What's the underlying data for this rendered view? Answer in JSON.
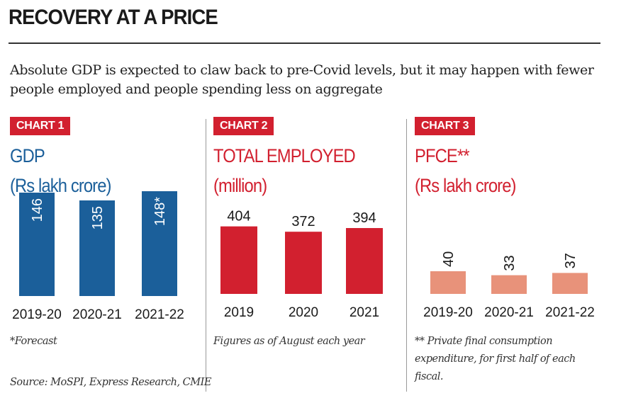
{
  "headline": "RECOVERY AT A PRICE",
  "subtitle": "Absolute GDP is expected to claw back to pre-Covid levels, but it may happen with fewer people employed and people spending less on aggregate",
  "source": "Source: MoSPI, Express Research, CMIE",
  "chart_data": [
    {
      "type": "bar",
      "badge": "CHART 1",
      "title": "GDP",
      "unit": "(Rs lakh crore)",
      "categories": [
        "2019-20",
        "2020-21",
        "2021-22"
      ],
      "values": [
        146,
        135,
        148
      ],
      "value_labels": [
        "146",
        "135",
        "148*"
      ],
      "label_orientation": "vertical-inside",
      "color": "#1b5f9a",
      "note": "*Forecast"
    },
    {
      "type": "bar",
      "badge": "CHART 2",
      "title": "TOTAL EMPLOYED",
      "unit": "(million)",
      "categories": [
        "2019",
        "2020",
        "2021"
      ],
      "values": [
        404,
        372,
        394
      ],
      "value_labels": [
        "404",
        "372",
        "394"
      ],
      "label_orientation": "horizontal-above",
      "color": "#d2202f",
      "note": "Figures as of August each year"
    },
    {
      "type": "bar",
      "badge": "CHART 3",
      "title": "PFCE**",
      "unit": "(Rs lakh crore)",
      "categories": [
        "2019-20",
        "2020-21",
        "2021-22"
      ],
      "values": [
        40,
        33,
        37
      ],
      "value_labels": [
        "40",
        "33",
        "37"
      ],
      "label_orientation": "vertical-above",
      "color": "#e8927a",
      "note": "** Private final consumption expenditure, for first half of each fiscal."
    }
  ]
}
